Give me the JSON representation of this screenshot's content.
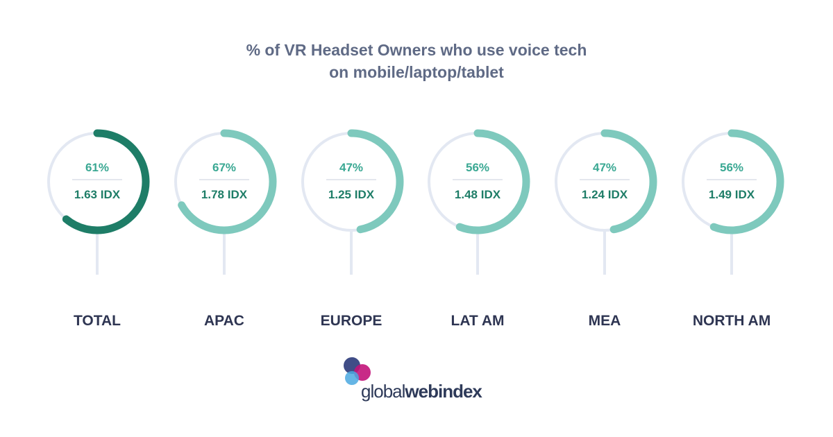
{
  "title": {
    "line1": "% of VR Headset Owners who use voice tech",
    "line2": "on mobile/laptop/tablet"
  },
  "chart_data": {
    "type": "donut",
    "title": "% of VR Headset Owners who use voice tech on mobile/laptop/tablet",
    "categories": [
      "TOTAL",
      "APAC",
      "EUROPE",
      "LAT AM",
      "MEA",
      "NORTH AM"
    ],
    "series": [
      {
        "name": "%",
        "values": [
          61,
          67,
          47,
          56,
          47,
          56
        ]
      }
    ],
    "percent_labels": [
      "61%",
      "67%",
      "47%",
      "56%",
      "47%",
      "56%"
    ],
    "idx_labels": [
      "1.63 IDX",
      "1.78 IDX",
      "1.25 IDX",
      "1.48 IDX",
      "1.24 IDX",
      "1.49 IDX"
    ],
    "ylim": [
      0,
      100
    ],
    "colors": {
      "total_arc": "#1e7d67",
      "region_arc": "#7ec9bd",
      "track": "#e3e8f2",
      "stem": "#e3e8f2",
      "value_text": "#3aa893",
      "idx_text": "#1e7d67",
      "category_text": "#2e3552",
      "divider": "#c9cfdb"
    }
  },
  "logo": {
    "text_light": "global",
    "text_bold": "webindex",
    "colors": {
      "navy": "#2b3a7a",
      "magenta": "#c2147a",
      "sky": "#4aa8e0"
    }
  }
}
